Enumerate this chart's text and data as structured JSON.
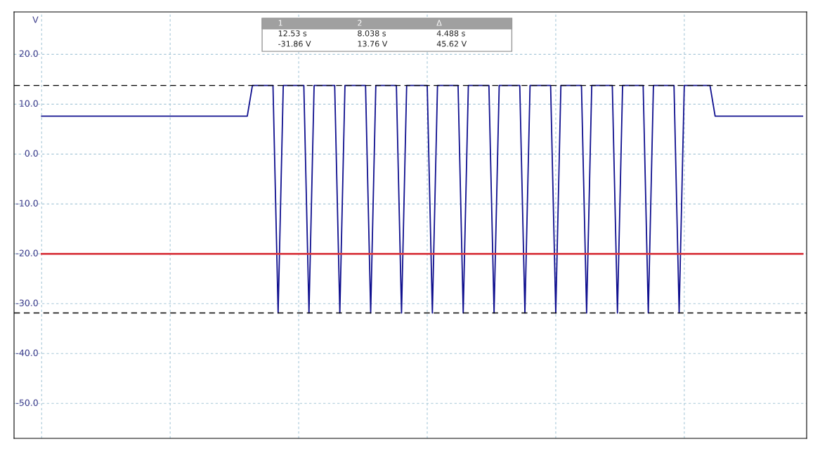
{
  "chart_data": {
    "type": "line",
    "ylabel": "V",
    "categories": [
      null,
      null,
      null,
      null,
      null,
      null,
      null,
      null,
      null,
      null,
      null,
      null,
      null,
      null,
      null,
      null,
      null,
      null,
      null,
      null,
      null,
      null,
      null,
      null,
      null,
      null,
      null,
      null,
      null,
      null,
      null,
      null,
      null,
      null,
      null,
      null,
      null,
      null,
      null,
      null,
      null,
      null,
      null,
      null,
      null,
      null,
      null,
      null,
      null,
      null,
      null,
      null,
      null,
      null,
      null,
      null,
      null,
      null,
      null,
      null,
      null,
      null,
      null,
      null,
      null,
      null,
      null,
      null,
      null,
      null,
      null,
      null,
      null,
      null,
      null,
      null,
      null,
      null,
      null,
      null,
      null,
      null,
      null,
      null,
      null,
      null,
      null,
      null,
      null,
      null,
      null,
      null,
      null,
      null,
      null,
      null,
      null,
      null,
      null,
      null,
      null,
      null,
      null,
      null,
      null,
      null,
      null,
      null,
      null,
      null,
      null,
      null,
      null,
      null,
      null,
      null,
      null,
      null,
      null,
      null,
      null,
      null,
      null,
      null,
      null,
      null,
      null,
      null,
      null,
      null,
      null,
      null,
      null,
      null,
      null,
      null,
      null,
      null,
      null,
      null,
      null,
      null,
      null,
      null,
      null,
      null,
      null,
      null,
      null
    ],
    "series": [
      {
        "color": "#10108f",
        "values": [
          7.6,
          7.6,
          7.6,
          7.6,
          7.6,
          7.6,
          7.6,
          7.6,
          7.6,
          7.6,
          7.6,
          7.6,
          7.6,
          7.6,
          7.6,
          7.6,
          7.6,
          7.6,
          7.6,
          7.6,
          7.6,
          7.6,
          7.6,
          7.6,
          7.6,
          7.6,
          7.6,
          7.6,
          7.6,
          7.6,
          7.6,
          7.6,
          7.6,
          7.6,
          7.6,
          7.6,
          7.6,
          7.6,
          7.6,
          7.6,
          7.6,
          13.76,
          13.76,
          13.76,
          13.76,
          13.76,
          -31.86,
          13.76,
          13.76,
          13.76,
          13.76,
          13.76,
          -31.86,
          13.76,
          13.76,
          13.76,
          13.76,
          13.76,
          -31.86,
          13.76,
          13.76,
          13.76,
          13.76,
          13.76,
          -31.86,
          13.76,
          13.76,
          13.76,
          13.76,
          13.76,
          -31.86,
          13.76,
          13.76,
          13.76,
          13.76,
          13.76,
          -31.86,
          13.76,
          13.76,
          13.76,
          13.76,
          13.76,
          -31.86,
          13.76,
          13.76,
          13.76,
          13.76,
          13.76,
          -31.86,
          13.76,
          13.76,
          13.76,
          13.76,
          13.76,
          -31.86,
          13.76,
          13.76,
          13.76,
          13.76,
          13.76,
          -31.86,
          13.76,
          13.76,
          13.76,
          13.76,
          13.76,
          -31.86,
          13.76,
          13.76,
          13.76,
          13.76,
          13.76,
          -31.86,
          13.76,
          13.76,
          13.76,
          13.76,
          13.76,
          -31.86,
          13.76,
          13.76,
          13.76,
          13.76,
          13.76,
          -31.86,
          13.76,
          13.76,
          13.76,
          13.76,
          13.76,
          13.76,
          7.6,
          7.6,
          7.6,
          7.6,
          7.6,
          7.6,
          7.6,
          7.6,
          7.6,
          7.6,
          7.6,
          7.6,
          7.6,
          7.6,
          7.6,
          7.6,
          7.6,
          7.6
        ]
      },
      {
        "color": "#d93840",
        "values": [
          -20.0,
          -20.0,
          -20.0,
          -20.0,
          -20.0,
          -20.0,
          -20.0,
          -20.0,
          -20.0,
          -20.0,
          -20.0,
          -20.0,
          -20.0,
          -20.0,
          -20.0,
          -20.0,
          -20.0,
          -20.0,
          -20.0,
          -20.0,
          -20.0,
          -20.0,
          -20.0,
          -20.0,
          -20.0,
          -20.0,
          -20.0,
          -20.0,
          -20.0,
          -20.0,
          -20.0,
          -20.0,
          -20.0,
          -20.0,
          -20.0,
          -20.0,
          -20.0,
          -20.0,
          -20.0,
          -20.0,
          -20.0,
          -20.0,
          -20.0,
          -20.0,
          -20.0,
          -20.0,
          -20.0,
          -20.0,
          -20.0,
          -20.0,
          -20.0,
          -20.0,
          -20.0,
          -20.0,
          -20.0,
          -20.0,
          -20.0,
          -20.0,
          -20.0,
          -20.0,
          -20.0,
          -20.0,
          -20.0,
          -20.0,
          -20.0,
          -20.0,
          -20.0,
          -20.0,
          -20.0,
          -20.0,
          -20.0,
          -20.0,
          -20.0,
          -20.0,
          -20.0,
          -20.0,
          -20.0,
          -20.0,
          -20.0,
          -20.0,
          -20.0,
          -20.0,
          -20.0,
          -20.0,
          -20.0,
          -20.0,
          -20.0,
          -20.0,
          -20.0,
          -20.0,
          -20.0,
          -20.0,
          -20.0,
          -20.0,
          -20.0,
          -20.0,
          -20.0,
          -20.0,
          -20.0,
          -20.0,
          -20.0,
          -20.0,
          -20.0,
          -20.0,
          -20.0,
          -20.0,
          -20.0,
          -20.0,
          -20.0,
          -20.0,
          -20.0,
          -20.0,
          -20.0,
          -20.0,
          -20.0,
          -20.0,
          -20.0,
          -20.0,
          -20.0,
          -20.0,
          -20.0,
          -20.0,
          -20.0,
          -20.0,
          -20.0,
          -20.0,
          -20.0,
          -20.0,
          -20.0,
          -20.0,
          -20.0,
          -20.0,
          -20.0,
          -20.0,
          -20.0,
          -20.0,
          -20.0,
          -20.0,
          -20.0,
          -20.0,
          -20.0,
          -20.0,
          -20.0,
          -20.0,
          -20.0,
          -20.0,
          -20.0,
          -20.0,
          -20.0
        ]
      }
    ],
    "ylim": [
      -57,
      28.5
    ],
    "yticks": [
      {
        "value": -50,
        "label": "-50.0"
      },
      {
        "value": -40,
        "label": "-40.0"
      },
      {
        "value": -30,
        "label": "-30.0"
      },
      {
        "value": -20,
        "label": "-20.0"
      },
      {
        "value": -10,
        "label": "-10.0"
      },
      {
        "value": 0,
        "label": "0.0"
      },
      {
        "value": 10,
        "label": "10.0"
      },
      {
        "value": 20,
        "label": "20.0"
      }
    ],
    "tick_labels": "y",
    "grid": true,
    "line_style": "solid",
    "marker": "none",
    "ref_lines": [
      {
        "axis": "y",
        "value": 13.76,
        "color": "#000000",
        "line_style": "dashed"
      },
      {
        "axis": "y",
        "value": -31.86,
        "color": "#000000",
        "line_style": "dashed"
      }
    ],
    "annotations": [
      "1",
      "2",
      "Δ",
      "12.53 s",
      "8.038 s",
      "4.488 s",
      "-31.86 V",
      "13.76 V",
      "45.62 V"
    ]
  }
}
